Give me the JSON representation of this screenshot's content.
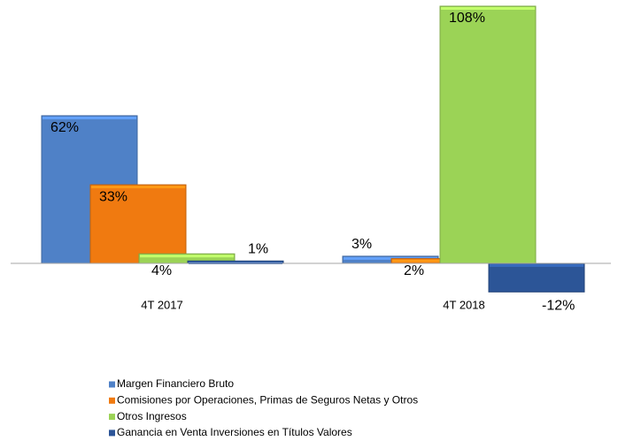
{
  "chart_data": {
    "type": "bar",
    "categories": [
      "4T 2017",
      "4T 2018"
    ],
    "series": [
      {
        "name": "Margen Financiero Bruto",
        "color": "#4f81c7",
        "values": [
          62,
          3
        ],
        "value_labels": [
          "62%",
          "3%"
        ]
      },
      {
        "name": "Comisiones por Operaciones, Primas de Seguros Netas y Otros",
        "color": "#f07a10",
        "values": [
          33,
          2
        ],
        "value_labels": [
          "33%",
          "2%"
        ]
      },
      {
        "name": "Otros Ingresos",
        "color": "#9bd356",
        "values": [
          4,
          108
        ],
        "value_labels": [
          "4%",
          "108%"
        ]
      },
      {
        "name": "Ganancia en Venta Inversiones en Títulos Valores",
        "color": "#2c5597",
        "values": [
          1,
          -12
        ],
        "value_labels": [
          "1%",
          "-12%"
        ]
      }
    ],
    "legend": "bottom-left"
  }
}
